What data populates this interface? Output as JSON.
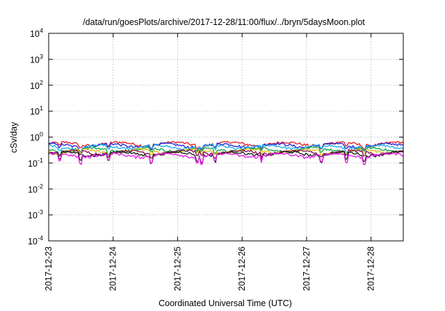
{
  "chart_data": {
    "type": "line",
    "title": "/data/run/goesPlots/archive/2017-12-28/11:00/flux/../bryn/5daysMoon.plot",
    "xlabel": "Coordinated Universal Time (UTC)",
    "ylabel": "cSv/day",
    "y_scale": "log",
    "ylim": [
      0.0001,
      10000
    ],
    "y_ticks": [
      {
        "value": 0.0001,
        "base": "10",
        "exp": "-4"
      },
      {
        "value": 0.001,
        "base": "10",
        "exp": "-3"
      },
      {
        "value": 0.01,
        "base": "10",
        "exp": "-2"
      },
      {
        "value": 0.1,
        "base": "10",
        "exp": "-1"
      },
      {
        "value": 1,
        "base": "10",
        "exp": "0"
      },
      {
        "value": 10,
        "base": "10",
        "exp": "1"
      },
      {
        "value": 100,
        "base": "10",
        "exp": "2"
      },
      {
        "value": 1000,
        "base": "10",
        "exp": "3"
      },
      {
        "value": 10000,
        "base": "10",
        "exp": "4"
      }
    ],
    "xlim": [
      "2017-12-23T00:00",
      "2017-12-28T12:00"
    ],
    "x_ticks": [
      "2017-12-23",
      "2017-12-24",
      "2017-12-25",
      "2017-12-26",
      "2017-12-27",
      "2017-12-28"
    ],
    "grid": true,
    "series": [
      {
        "color": "#e8202a",
        "level": 0.55
      },
      {
        "color": "#2a2ad8",
        "level": 0.48
      },
      {
        "color": "#22b0e8",
        "level": 0.42
      },
      {
        "color": "#18a848",
        "level": 0.33
      },
      {
        "color": "#e0c020",
        "level": 0.29
      },
      {
        "color": "#8a1a5a",
        "level": 0.26
      },
      {
        "color": "#202020",
        "level": 0.23
      },
      {
        "color": "#e820e8",
        "level": 0.2
      }
    ]
  }
}
